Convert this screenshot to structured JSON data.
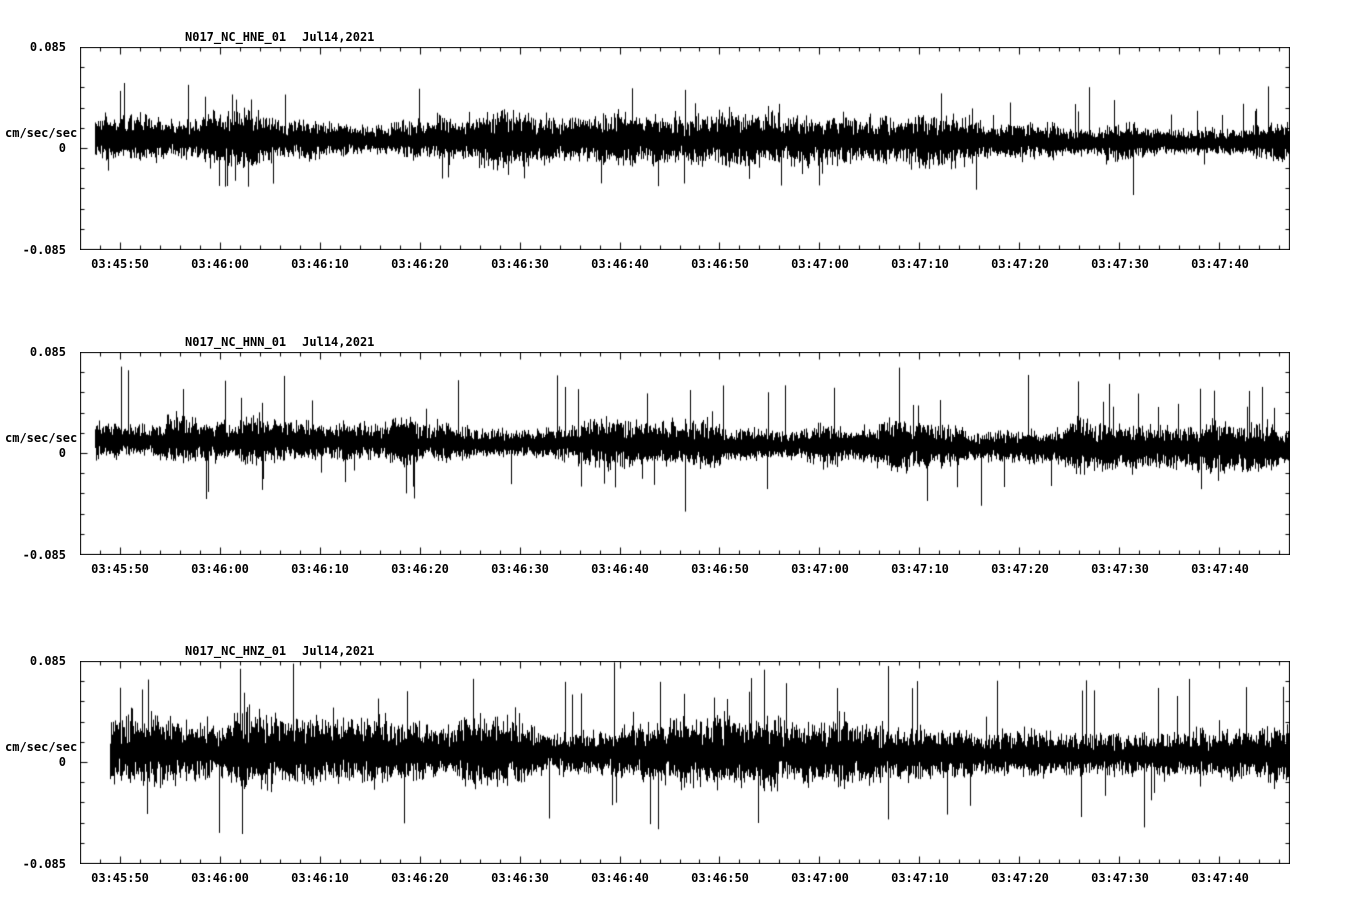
{
  "page": {
    "background_color": "#ffffff",
    "trace_color": "#000000",
    "kind": "three-component seismogram strip chart"
  },
  "chart_data": [
    {
      "type": "line",
      "chart_kind": "seismogram",
      "title": "N017_NC_HNE_01",
      "date_label": "Jul14,2021",
      "ylabel": "cm/sec/sec",
      "ylim": [
        -0.085,
        0.085
      ],
      "y_ticks": [
        "0.085",
        "0",
        "-0.085"
      ],
      "x_ticks": [
        "03:45:50",
        "03:46:00",
        "03:46:10",
        "03:46:20",
        "03:46:30",
        "03:46:40",
        "03:46:50",
        "03:47:00",
        "03:47:10",
        "03:47:20",
        "03:47:30",
        "03:47:40"
      ],
      "x_tick_interval_seconds": 10,
      "x_span_seconds": 121,
      "x_first_tick_offset_seconds": 4,
      "grid": false,
      "legend": false,
      "trace": {
        "description": "continuous broadband background noise, no clear event onset",
        "start_seconds": 1.5,
        "baseline_start": 0.007,
        "baseline_end": 0.004,
        "noise_core_amplitude": 0.013,
        "noise_peak_amplitude": 0.045
      }
    },
    {
      "type": "line",
      "chart_kind": "seismogram",
      "title": "N017_NC_HNN_01",
      "date_label": "Jul14,2021",
      "ylabel": "cm/sec/sec",
      "ylim": [
        -0.085,
        0.085
      ],
      "y_ticks": [
        "0.085",
        "0",
        "-0.085"
      ],
      "x_ticks": [
        "03:45:50",
        "03:46:00",
        "03:46:10",
        "03:46:20",
        "03:46:30",
        "03:46:40",
        "03:46:50",
        "03:47:00",
        "03:47:10",
        "03:47:20",
        "03:47:30",
        "03:47:40"
      ],
      "x_tick_interval_seconds": 10,
      "x_span_seconds": 121,
      "x_first_tick_offset_seconds": 4,
      "grid": false,
      "legend": false,
      "trace": {
        "description": "continuous broadband background noise with slight downward drift and occasional spikes to ~0.06",
        "start_seconds": 1.5,
        "baseline_start": 0.01,
        "baseline_end": 0.003,
        "noise_core_amplitude": 0.014,
        "noise_peak_amplitude": 0.06
      }
    },
    {
      "type": "line",
      "chart_kind": "seismogram",
      "title": "N017_NC_HNZ_01",
      "date_label": "Jul14,2021",
      "ylabel": "cm/sec/sec",
      "ylim": [
        -0.085,
        0.085
      ],
      "y_ticks": [
        "0.085",
        "0",
        "-0.085"
      ],
      "x_ticks": [
        "03:45:50",
        "03:46:00",
        "03:46:10",
        "03:46:20",
        "03:46:30",
        "03:46:40",
        "03:46:50",
        "03:47:00",
        "03:47:10",
        "03:47:20",
        "03:47:30",
        "03:47:40"
      ],
      "x_tick_interval_seconds": 10,
      "x_span_seconds": 121,
      "x_first_tick_offset_seconds": 4,
      "grid": false,
      "legend": false,
      "trace": {
        "description": "continuous broadband background noise, higher amplitude than horizontals, spikes to ~0.075",
        "start_seconds": 3.0,
        "baseline_start": 0.008,
        "baseline_end": 0.005,
        "noise_core_amplitude": 0.02,
        "noise_peak_amplitude": 0.072
      }
    }
  ]
}
